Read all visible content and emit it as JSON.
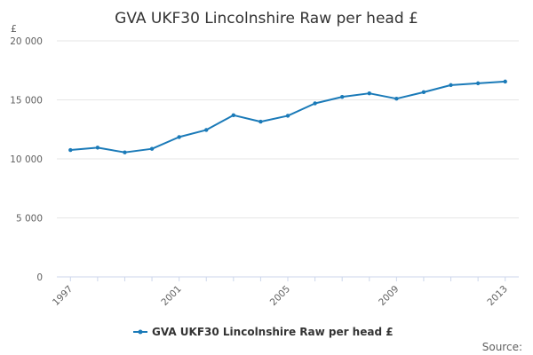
{
  "title": "GVA UKF30 Lincolnshire Raw per head £",
  "unit_label": "£",
  "source_label": "Source:",
  "colors": {
    "series": "#1a7ab8",
    "grid": "#e6e6e6",
    "axis": "#ccd6eb",
    "text": "#333333",
    "muted": "#606060"
  },
  "chart_data": {
    "type": "line",
    "title": "GVA UKF30 Lincolnshire Raw per head £",
    "xlabel": "",
    "ylabel": "£",
    "x": [
      1997,
      1998,
      1999,
      2000,
      2001,
      2002,
      2003,
      2004,
      2005,
      2006,
      2007,
      2008,
      2009,
      2010,
      2011,
      2012,
      2013
    ],
    "x_tick_labels": [
      "1997",
      "2001",
      "2005",
      "2009",
      "2013"
    ],
    "x_tick_values": [
      1997,
      2001,
      2005,
      2009,
      2013
    ],
    "y_tick_labels": [
      "0",
      "5 000",
      "10 000",
      "15 000",
      "20 000"
    ],
    "y_tick_values": [
      0,
      5000,
      10000,
      15000,
      20000
    ],
    "ylim": [
      0,
      20000
    ],
    "grid": true,
    "legend_position": "bottom-center",
    "series": [
      {
        "name": "GVA UKF30 Lincolnshire Raw per head £",
        "values": [
          10750,
          10950,
          10550,
          10850,
          11850,
          12450,
          13700,
          13150,
          13650,
          14700,
          15250,
          15550,
          15100,
          15650,
          16250,
          16400,
          16550
        ]
      }
    ]
  }
}
